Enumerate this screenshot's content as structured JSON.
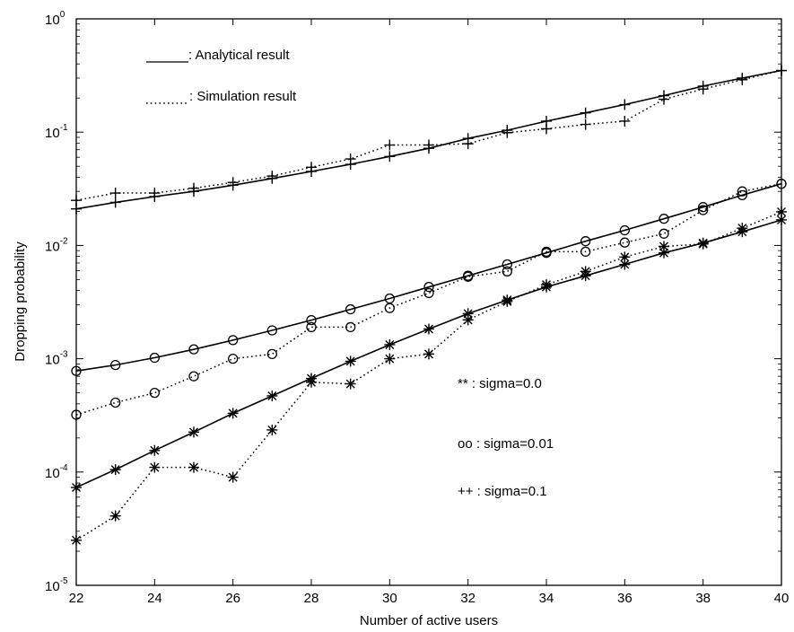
{
  "chart_data": {
    "type": "line",
    "title": "",
    "xlabel": "Number of active users",
    "ylabel": "Dropping probability",
    "xlim": [
      22,
      40
    ],
    "ylim": [
      1e-05,
      1
    ],
    "yscale": "log",
    "grid": false,
    "x_ticks": [
      22,
      24,
      26,
      28,
      30,
      32,
      34,
      36,
      38,
      40
    ],
    "x_tick_labels": [
      "22",
      "24",
      "26",
      "28",
      "30",
      "32",
      "34",
      "36",
      "38",
      "40"
    ],
    "y_ticks": [
      {
        "value": 1e-05,
        "base": "10",
        "exp": "-5"
      },
      {
        "value": 0.0001,
        "base": "10",
        "exp": "-4"
      },
      {
        "value": 0.001,
        "base": "10",
        "exp": "-3"
      },
      {
        "value": 0.01,
        "base": "10",
        "exp": "-2"
      },
      {
        "value": 0.1,
        "base": "10",
        "exp": "-1"
      },
      {
        "value": 1,
        "base": "10",
        "exp": "0"
      }
    ],
    "x": [
      22,
      23,
      24,
      25,
      26,
      27,
      28,
      29,
      30,
      31,
      32,
      33,
      34,
      35,
      36,
      37,
      38,
      39,
      40
    ],
    "series": [
      {
        "marker": "plus",
        "style": "solid",
        "values": [
          0.021,
          0.024,
          0.027,
          0.03,
          0.034,
          0.039,
          0.045,
          0.052,
          0.061,
          0.072,
          0.088,
          0.104,
          0.125,
          0.148,
          0.175,
          0.21,
          0.255,
          0.3,
          0.35
        ]
      },
      {
        "marker": "plus",
        "style": "dotted",
        "values": [
          0.025,
          0.029,
          0.029,
          0.032,
          0.036,
          0.041,
          0.049,
          0.058,
          0.077,
          0.077,
          0.079,
          0.099,
          0.107,
          0.117,
          0.125,
          0.195,
          0.24,
          0.29,
          0.35
        ]
      },
      {
        "marker": "circle",
        "style": "solid",
        "values": [
          0.00078,
          0.00088,
          0.00102,
          0.00121,
          0.00146,
          0.00178,
          0.00219,
          0.00273,
          0.0034,
          0.0043,
          0.0054,
          0.0068,
          0.0086,
          0.0109,
          0.0136,
          0.0172,
          0.0218,
          0.0278,
          0.035
        ]
      },
      {
        "marker": "circle",
        "style": "dotted",
        "values": [
          0.00032,
          0.00041,
          0.0005,
          0.0007,
          0.001,
          0.0011,
          0.0019,
          0.0019,
          0.0028,
          0.0038,
          0.0053,
          0.0059,
          0.0088,
          0.0088,
          0.0106,
          0.0127,
          0.0205,
          0.03,
          0.035
        ]
      },
      {
        "marker": "asterisk",
        "style": "solid",
        "values": [
          7.3e-05,
          0.000105,
          0.000155,
          0.000225,
          0.00033,
          0.00047,
          0.00067,
          0.00095,
          0.00133,
          0.00183,
          0.0025,
          0.0033,
          0.0043,
          0.0054,
          0.0068,
          0.0086,
          0.0105,
          0.0132,
          0.0168
        ]
      },
      {
        "marker": "asterisk",
        "style": "dotted",
        "values": [
          2.5e-05,
          4.1e-05,
          0.00011,
          0.00011,
          9e-05,
          0.000235,
          0.00062,
          0.0006,
          0.001,
          0.0011,
          0.0022,
          0.0032,
          0.0045,
          0.0059,
          0.0079,
          0.0098,
          0.0103,
          0.0142,
          0.0198
        ]
      }
    ],
    "annotations": [
      {
        "id": "legend-analytical",
        "text": ": Analytical result",
        "key_style": "solid"
      },
      {
        "id": "legend-simulation",
        "text": ": Simulation result",
        "key_style": "dotted"
      },
      {
        "id": "label-sigma-0",
        "text": "** : sigma=0.0"
      },
      {
        "id": "label-sigma-001",
        "text": "oo : sigma=0.01"
      },
      {
        "id": "label-sigma-01",
        "text": "++ : sigma=0.1"
      }
    ]
  }
}
